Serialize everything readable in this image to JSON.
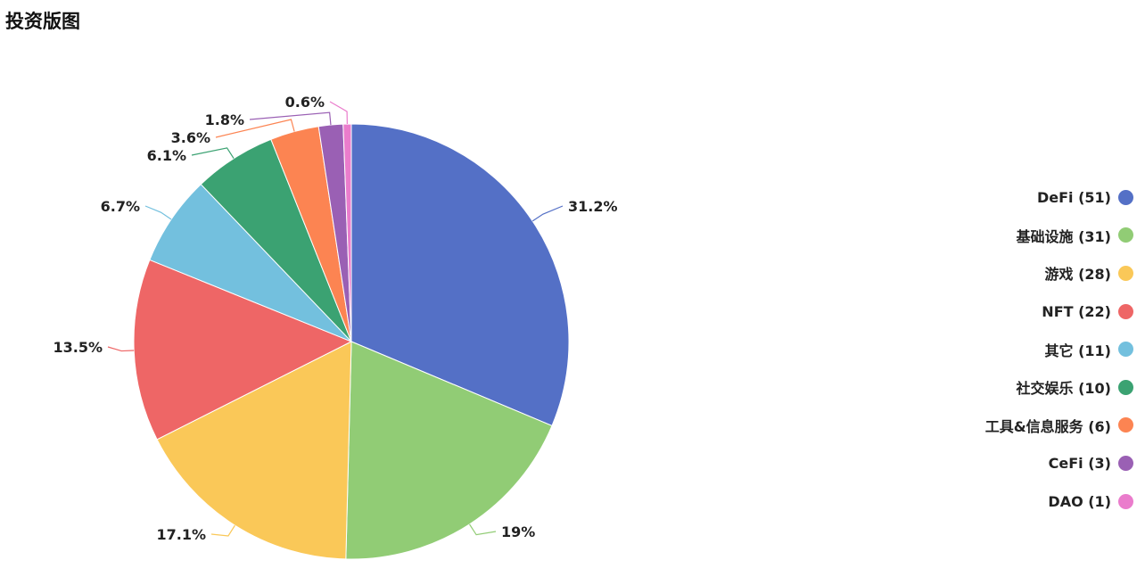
{
  "title": "投资版图",
  "chart_data": {
    "type": "pie",
    "title": "投资版图",
    "slices": [
      {
        "label": "DeFi",
        "count": 51,
        "value": 31.2,
        "value_label": "31.2%",
        "legend": "DeFi (51)",
        "color": "#5470c6"
      },
      {
        "label": "基础设施",
        "count": 31,
        "value": 19,
        "value_label": "19%",
        "legend": "基础设施 (31)",
        "color": "#91cc75"
      },
      {
        "label": "游戏",
        "count": 28,
        "value": 17.1,
        "value_label": "17.1%",
        "legend": "游戏 (28)",
        "color": "#fac858"
      },
      {
        "label": "NFT",
        "count": 22,
        "value": 13.5,
        "value_label": "13.5%",
        "legend": "NFT (22)",
        "color": "#ee6666"
      },
      {
        "label": "其它",
        "count": 11,
        "value": 6.7,
        "value_label": "6.7%",
        "legend": "其它 (11)",
        "color": "#73c0de"
      },
      {
        "label": "社交娱乐",
        "count": 10,
        "value": 6.1,
        "value_label": "6.1%",
        "legend": "社交娱乐 (10)",
        "color": "#3ba272"
      },
      {
        "label": "工具&信息服务",
        "count": 6,
        "value": 3.6,
        "value_label": "3.6%",
        "legend": "工具&信息服务 (6)",
        "color": "#fc8452"
      },
      {
        "label": "CeFi",
        "count": 3,
        "value": 1.8,
        "value_label": "1.8%",
        "legend": "CeFi (3)",
        "color": "#9a60b4"
      },
      {
        "label": "DAO",
        "count": 1,
        "value": 0.6,
        "value_label": "0.6%",
        "legend": "DAO (1)",
        "color": "#ea7ccc"
      }
    ],
    "legend_position": "right"
  }
}
